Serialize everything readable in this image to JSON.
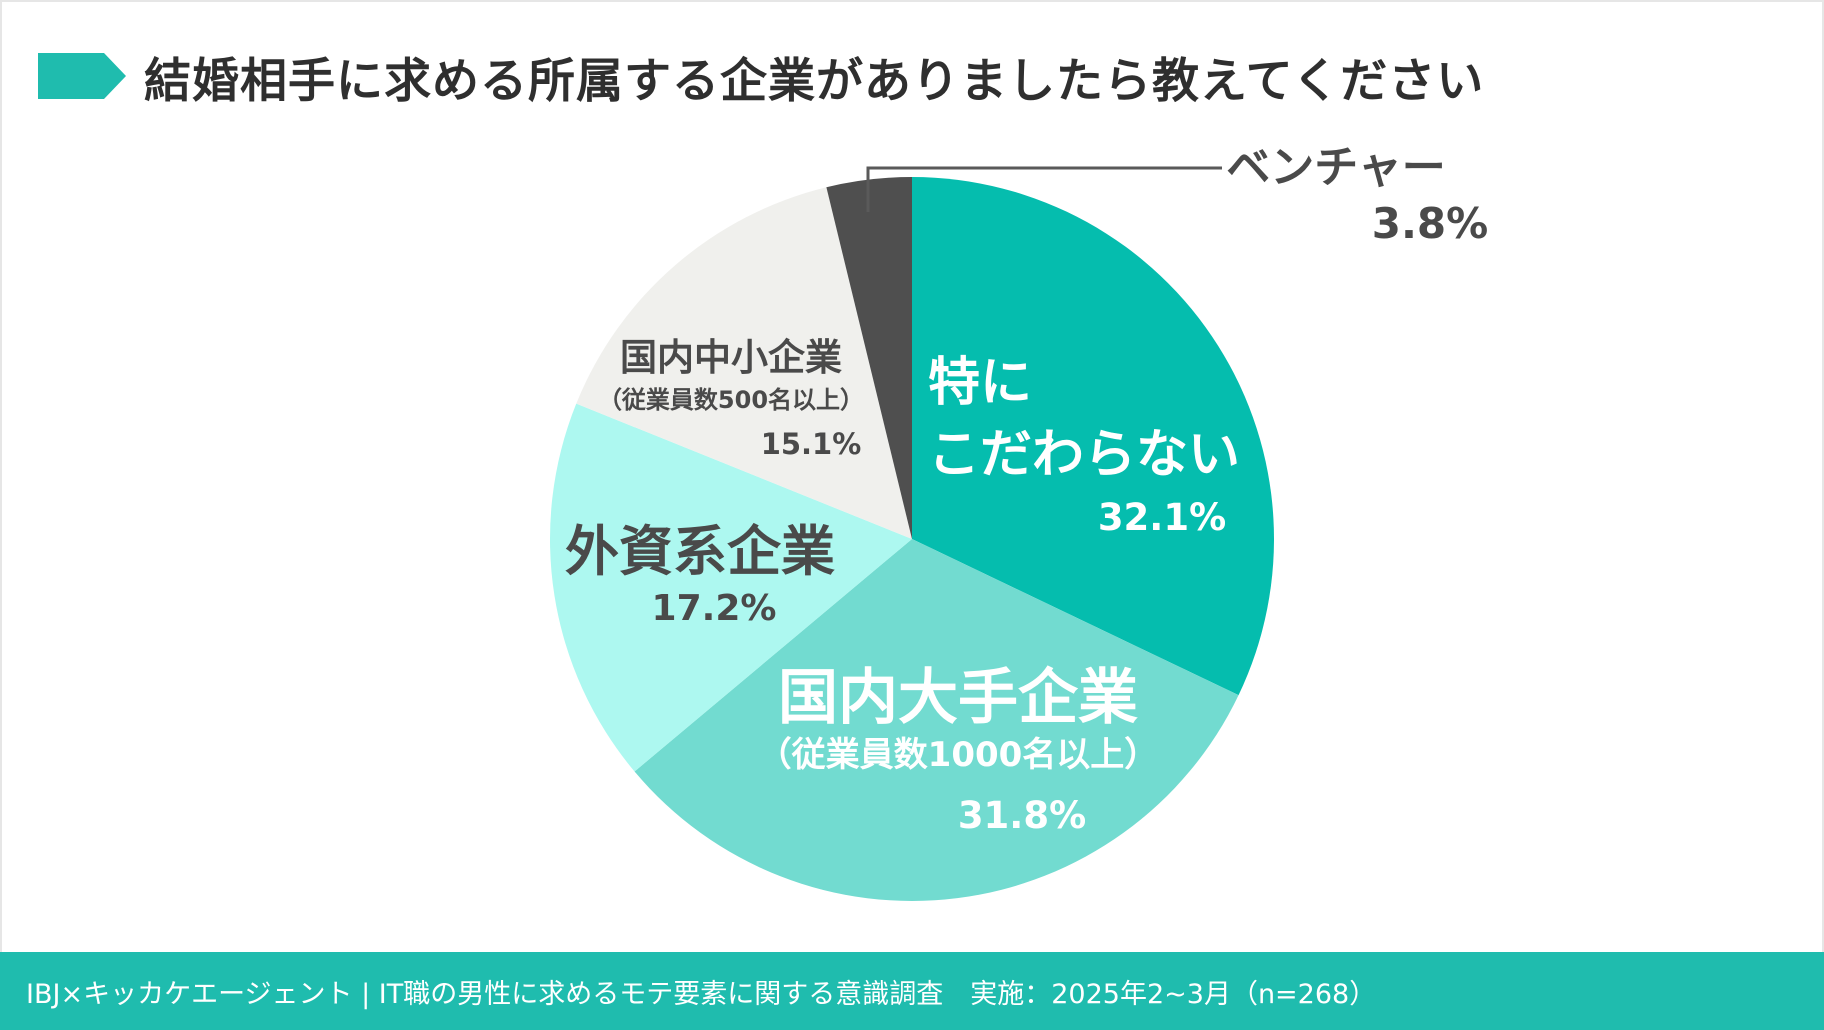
{
  "title": "結婚相手に求める所属する企業がありましたら教えてください",
  "footer": "IBJ×キッカケエージェント | IT職の男性に求めるモテ要素に関する意識調査　実施：2025年2~3月（n=268）",
  "colors": {
    "accent": "#1fbcae",
    "no_preference": "#05bdae",
    "large_domestic": "#72dbd0",
    "foreign": "#adf8f0",
    "small_domestic": "#f0f0ed",
    "venture": "#4f4f4f"
  },
  "chart_data": {
    "type": "pie",
    "title": "結婚相手に求める所属する企業がありましたら教えてください",
    "slices": [
      {
        "lines": [
          "特に",
          "こだわらない"
        ],
        "sub": "",
        "value": 32.1,
        "value_label": "32.1%",
        "color": "#05bdae",
        "text_color": "#ffffff"
      },
      {
        "lines": [
          "国内大手企業"
        ],
        "sub": "（従業員数1000名以上）",
        "value": 31.8,
        "value_label": "31.8%",
        "color": "#72dbd0",
        "text_color": "#ffffff"
      },
      {
        "lines": [
          "外資系企業"
        ],
        "sub": "",
        "value": 17.2,
        "value_label": "17.2%",
        "color": "#adf8f0",
        "text_color": "#4a4a4a"
      },
      {
        "lines": [
          "国内中小企業"
        ],
        "sub": "（従業員数500名以上）",
        "value": 15.1,
        "value_label": "15.1%",
        "color": "#f0f0ed",
        "text_color": "#4a4a4a"
      },
      {
        "lines": [
          "ベンチャー"
        ],
        "sub": "",
        "value": 3.8,
        "value_label": "3.8%",
        "color": "#4f4f4f",
        "text_color": "#4a4a4a"
      }
    ]
  }
}
